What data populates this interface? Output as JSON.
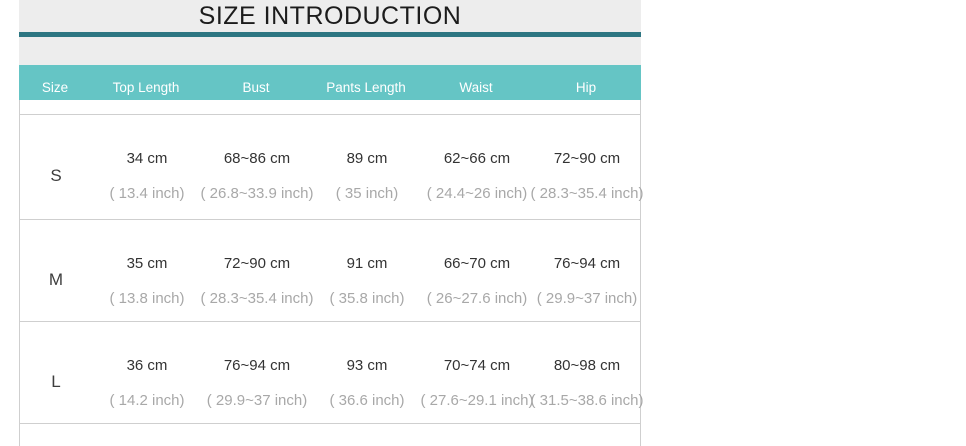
{
  "title": "SIZE INTRODUCTION",
  "chart_data": {
    "type": "table",
    "title": "SIZE INTRODUCTION",
    "columns": [
      "Size",
      "Top Length",
      "Bust",
      "Pants Length",
      "Waist",
      "Hip"
    ],
    "rows": [
      {
        "size": "S",
        "cells": [
          {
            "cm": "34 cm",
            "inch": "( 13.4 inch)"
          },
          {
            "cm": "68~86 cm",
            "inch": "( 26.8~33.9 inch)"
          },
          {
            "cm": "89 cm",
            "inch": "( 35 inch)"
          },
          {
            "cm": "62~66 cm",
            "inch": "( 24.4~26 inch)"
          },
          {
            "cm": "72~90 cm",
            "inch": "( 28.3~35.4 inch)"
          }
        ]
      },
      {
        "size": "M",
        "cells": [
          {
            "cm": "35 cm",
            "inch": "( 13.8 inch)"
          },
          {
            "cm": "72~90 cm",
            "inch": "( 28.3~35.4 inch)"
          },
          {
            "cm": "91 cm",
            "inch": "( 35.8 inch)"
          },
          {
            "cm": "66~70 cm",
            "inch": "( 26~27.6 inch)"
          },
          {
            "cm": "76~94 cm",
            "inch": "( 29.9~37 inch)"
          }
        ]
      },
      {
        "size": "L",
        "cells": [
          {
            "cm": "36 cm",
            "inch": "( 14.2 inch)"
          },
          {
            "cm": "76~94 cm",
            "inch": "( 29.9~37 inch)"
          },
          {
            "cm": "93 cm",
            "inch": "( 36.6 inch)"
          },
          {
            "cm": "70~74 cm",
            "inch": "( 27.6~29.1 inch)"
          },
          {
            "cm": "80~98 cm",
            "inch": "( 31.5~38.6 inch)"
          }
        ]
      }
    ],
    "layout_hints": {
      "header_position": "top",
      "grid": "horizontal-row-separators"
    }
  },
  "colors": {
    "header_bg": "#65c5c5",
    "header_text": "#ffffff",
    "divider": "#2d7682",
    "band_bg": "#ededed",
    "border": "#cfcfcf",
    "cm_text": "#333333",
    "inch_text": "#a8a8a8"
  }
}
